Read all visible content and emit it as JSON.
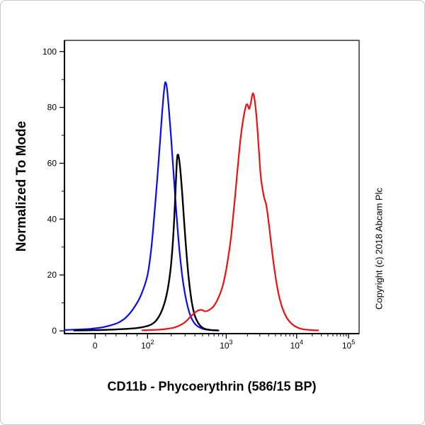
{
  "chart_data": {
    "type": "line",
    "title": "",
    "xlabel": "CD11b - Phycoerythrin (586/15 BP)",
    "ylabel": "Normalized To Mode",
    "copyright": "Copyright (c) 2018 Abcam Plc",
    "ylim": [
      -1,
      104
    ],
    "grid": false,
    "legend": "none",
    "x_scale": {
      "type": "biexponential-log",
      "linear_anchor_u": 0.104,
      "linear_span_u": 0.178,
      "decade_anchors": [
        [
          2,
          0.282
        ],
        [
          3,
          0.549
        ],
        [
          4,
          0.788
        ],
        [
          5,
          0.964
        ]
      ]
    },
    "y_major_ticks": [
      0,
      20,
      40,
      60,
      80,
      100
    ],
    "y_minor_ticks": [
      10,
      30,
      50,
      70,
      90
    ],
    "x_major_ticks": [
      {
        "label": "0",
        "value": 0
      },
      {
        "label": "10",
        "exp": "2",
        "value": 100
      },
      {
        "label": "10",
        "exp": "3",
        "value": 1000
      },
      {
        "label": "10",
        "exp": "4",
        "value": 10000
      },
      {
        "label": "10",
        "exp": "5",
        "value": 100000
      }
    ],
    "x_minor_ticks_linear": [
      20,
      40,
      60,
      80
    ],
    "series": [
      {
        "name": "blue-curve",
        "color": "#0b0bf0",
        "stroke_width": 2.2,
        "peak": {
          "x": 168,
          "y": 89
        },
        "points": [
          [
            -58,
            0.3
          ],
          [
            -30,
            0.5
          ],
          [
            -10,
            0.7
          ],
          [
            0,
            0.9
          ],
          [
            15,
            1.3
          ],
          [
            30,
            2
          ],
          [
            45,
            3
          ],
          [
            60,
            5
          ],
          [
            75,
            8.5
          ],
          [
            88,
            13
          ],
          [
            100,
            20
          ],
          [
            112,
            30
          ],
          [
            124,
            44
          ],
          [
            136,
            58
          ],
          [
            146,
            70
          ],
          [
            155,
            80
          ],
          [
            162,
            86
          ],
          [
            168,
            89
          ],
          [
            176,
            87
          ],
          [
            186,
            80
          ],
          [
            198,
            70
          ],
          [
            212,
            58
          ],
          [
            230,
            44
          ],
          [
            252,
            30
          ],
          [
            278,
            19
          ],
          [
            310,
            11
          ],
          [
            350,
            5.5
          ],
          [
            400,
            2.5
          ],
          [
            460,
            1.2
          ],
          [
            540,
            0.5
          ],
          [
            650,
            0.25
          ],
          [
            800,
            0.15
          ]
        ]
      },
      {
        "name": "black-curve",
        "color": "#000000",
        "stroke_width": 2.4,
        "peak": {
          "x": 241,
          "y": 63
        },
        "points": [
          [
            -40,
            0.15
          ],
          [
            0,
            0.25
          ],
          [
            40,
            0.5
          ],
          [
            80,
            1
          ],
          [
            110,
            2.2
          ],
          [
            135,
            4.5
          ],
          [
            158,
            8.5
          ],
          [
            178,
            14
          ],
          [
            196,
            22
          ],
          [
            210,
            32
          ],
          [
            220,
            42
          ],
          [
            228,
            52
          ],
          [
            235,
            60
          ],
          [
            241,
            63
          ],
          [
            250,
            62
          ],
          [
            262,
            57
          ],
          [
            276,
            49
          ],
          [
            292,
            39
          ],
          [
            312,
            28
          ],
          [
            336,
            18
          ],
          [
            364,
            10.5
          ],
          [
            398,
            5.5
          ],
          [
            440,
            2.8
          ],
          [
            490,
            1.3
          ],
          [
            550,
            0.6
          ],
          [
            640,
            0.3
          ],
          [
            780,
            0.15
          ]
        ]
      },
      {
        "name": "red-curve",
        "color": "#ee1111",
        "stroke_width": 2.2,
        "peak": {
          "x": 2380,
          "y": 85
        },
        "points": [
          [
            90,
            0.2
          ],
          [
            150,
            0.5
          ],
          [
            220,
            1.2
          ],
          [
            290,
            2.8
          ],
          [
            350,
            5
          ],
          [
            420,
            7
          ],
          [
            480,
            7.5
          ],
          [
            540,
            7
          ],
          [
            610,
            7.5
          ],
          [
            700,
            9
          ],
          [
            800,
            12
          ],
          [
            900,
            16
          ],
          [
            1000,
            22
          ],
          [
            1150,
            32
          ],
          [
            1300,
            45
          ],
          [
            1450,
            58
          ],
          [
            1600,
            69
          ],
          [
            1750,
            76
          ],
          [
            1900,
            80.5
          ],
          [
            2000,
            81
          ],
          [
            2120,
            79.5
          ],
          [
            2250,
            82
          ],
          [
            2380,
            85
          ],
          [
            2520,
            83
          ],
          [
            2700,
            76
          ],
          [
            2900,
            65
          ],
          [
            3100,
            55
          ],
          [
            3400,
            48.5
          ],
          [
            3700,
            45
          ],
          [
            4000,
            39
          ],
          [
            4400,
            30
          ],
          [
            4900,
            21
          ],
          [
            5500,
            13.5
          ],
          [
            6300,
            8
          ],
          [
            7300,
            4.5
          ],
          [
            8500,
            2.5
          ],
          [
            10000,
            1.3
          ],
          [
            13000,
            0.6
          ],
          [
            18000,
            0.3
          ],
          [
            26000,
            0.15
          ]
        ]
      }
    ]
  }
}
